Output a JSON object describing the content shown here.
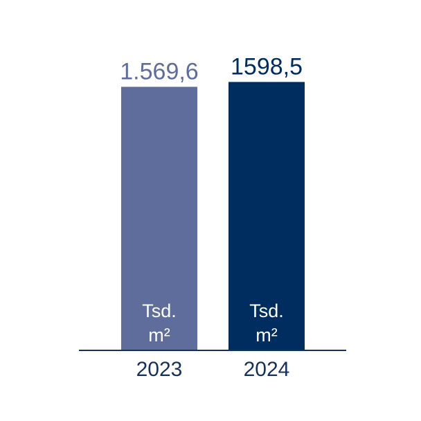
{
  "chart_data": {
    "type": "bar",
    "categories": [
      "2023",
      "2024"
    ],
    "values": [
      1569.6,
      1598.5
    ],
    "value_labels": [
      "1.569,6",
      "1598,5"
    ],
    "unit_label_line1": "Tsd.",
    "unit_label_line2": "m²",
    "bar_colors": [
      "#5f6d9c",
      "#002d5f"
    ],
    "value_label_colors": [
      "#5f6d9c",
      "#002d5f"
    ],
    "axis_color": "#14305f",
    "ylim": [
      0,
      1600
    ],
    "grid": false,
    "legend": "none",
    "title": "",
    "xlabel": "",
    "ylabel": ""
  }
}
